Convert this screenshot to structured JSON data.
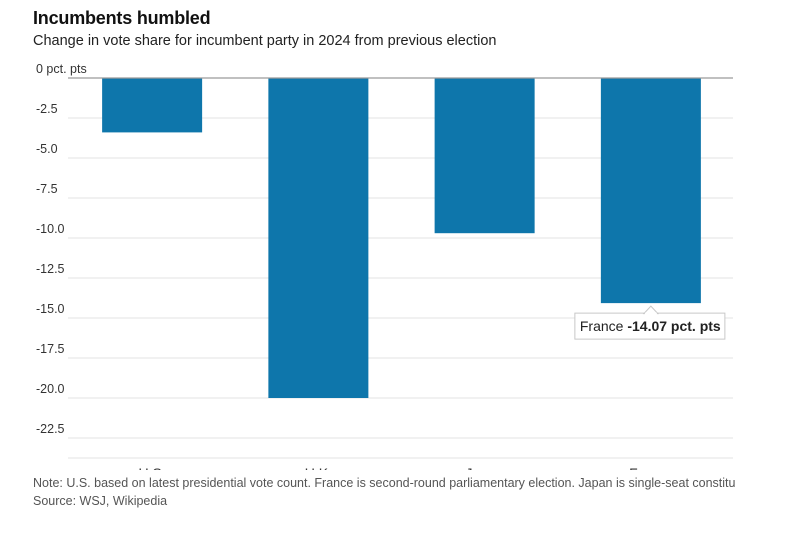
{
  "title": "Incumbents humbled",
  "subtitle": "Change in vote share for incumbent party in 2024 from previous election",
  "note": "Note: U.S. based on latest presidential vote count. France is second-round parliamentary election. Japan is single-seat constituency results.",
  "source": "Source: WSJ, Wikipedia",
  "colors": {
    "bar": "#0e76ab",
    "grid": "#e3e3e3",
    "zero_line": "#9a9a9a",
    "tick_text": "#333333"
  },
  "chart_data": {
    "type": "bar",
    "categories": [
      "U.S.",
      "U.K.",
      "Japan",
      "France"
    ],
    "values": [
      -3.4,
      -20.0,
      -9.7,
      -14.07
    ],
    "ylim": [
      -23.75,
      0
    ],
    "yticks": [
      0,
      -2.5,
      -5.0,
      -7.5,
      -10.0,
      -12.5,
      -15.0,
      -17.5,
      -20.0,
      -22.5
    ],
    "ytick_labels": [
      "0 pct. pts",
      "-2.5",
      "-5.0",
      "-7.5",
      "-10.0",
      "-12.5",
      "-15.0",
      "-17.5",
      "-20.0",
      "-22.5"
    ],
    "grid": true,
    "tooltip": {
      "category": "France",
      "label": "France",
      "value_text": "-14.07 pct. pts"
    }
  }
}
